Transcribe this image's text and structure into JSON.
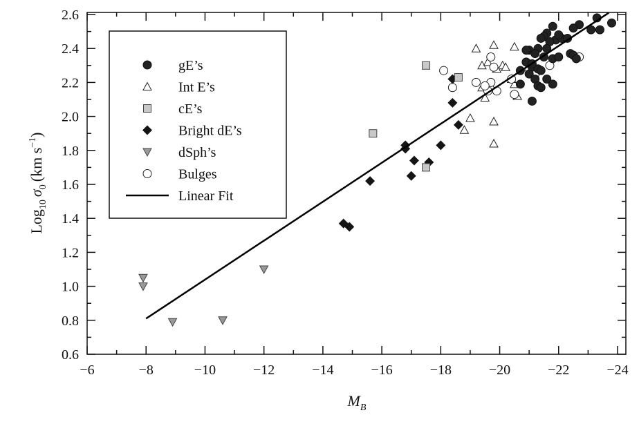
{
  "chart_data": {
    "type": "scatter",
    "title": "",
    "xlabel": "M",
    "xlabel_sub": "B",
    "ylabel_pre": "Log",
    "ylabel_sub10": "10",
    "ylabel_sigma": "σ",
    "ylabel_sub0": "0",
    "ylabel_units": "(km s",
    "ylabel_exp": "−1",
    "ylabel_close": ")",
    "xlim": [
      -6,
      -24
    ],
    "ylim": [
      0.6,
      2.6
    ],
    "xticks": [
      -6,
      -8,
      -10,
      -12,
      -14,
      -16,
      -18,
      -20,
      -22,
      -24
    ],
    "xtick_labels": [
      "−6",
      "−8",
      "−10",
      "−12",
      "−14",
      "−16",
      "−18",
      "−20",
      "−22",
      "−24"
    ],
    "yticks": [
      0.6,
      0.8,
      1.0,
      1.2,
      1.4,
      1.6,
      1.8,
      2.0,
      2.2,
      2.4,
      2.6
    ],
    "ytick_labels": [
      "0.6",
      "0.8",
      "1.0",
      "1.2",
      "1.4",
      "1.6",
      "1.8",
      "2.0",
      "2.2",
      "2.4",
      "2.6"
    ],
    "grid": false,
    "legend_position": "top-left",
    "series": [
      {
        "name": "gE’s",
        "marker": "circle-filled",
        "points": [
          [
            -23.3,
            2.58
          ],
          [
            -23.8,
            2.55
          ],
          [
            -22.7,
            2.54
          ],
          [
            -22.5,
            2.52
          ],
          [
            -23.1,
            2.51
          ],
          [
            -23.4,
            2.51
          ],
          [
            -21.8,
            2.53
          ],
          [
            -21.6,
            2.49
          ],
          [
            -21.5,
            2.47
          ],
          [
            -21.9,
            2.45
          ],
          [
            -22.1,
            2.46
          ],
          [
            -22.3,
            2.46
          ],
          [
            -22.0,
            2.48
          ],
          [
            -21.7,
            2.44
          ],
          [
            -21.6,
            2.4
          ],
          [
            -21.4,
            2.46
          ],
          [
            -21.3,
            2.4
          ],
          [
            -21.0,
            2.39
          ],
          [
            -20.9,
            2.39
          ],
          [
            -21.2,
            2.37
          ],
          [
            -21.5,
            2.35
          ],
          [
            -22.4,
            2.37
          ],
          [
            -22.5,
            2.36
          ],
          [
            -22.6,
            2.34
          ],
          [
            -21.8,
            2.34
          ],
          [
            -20.9,
            2.32
          ],
          [
            -21.1,
            2.29
          ],
          [
            -21.3,
            2.28
          ],
          [
            -21.4,
            2.27
          ],
          [
            -20.7,
            2.27
          ],
          [
            -21.0,
            2.25
          ],
          [
            -21.2,
            2.22
          ],
          [
            -21.6,
            2.22
          ],
          [
            -21.3,
            2.18
          ],
          [
            -21.4,
            2.17
          ],
          [
            -21.8,
            2.19
          ],
          [
            -20.7,
            2.19
          ],
          [
            -21.1,
            2.09
          ],
          [
            -22.0,
            2.35
          ],
          [
            -21.1,
            2.31
          ]
        ]
      },
      {
        "name": "Int E’s",
        "marker": "triangle-open",
        "points": [
          [
            -19.2,
            2.4
          ],
          [
            -19.8,
            2.42
          ],
          [
            -20.5,
            2.41
          ],
          [
            -19.4,
            2.3
          ],
          [
            -19.6,
            2.32
          ],
          [
            -20.1,
            2.3
          ],
          [
            -20.2,
            2.29
          ],
          [
            -19.5,
            2.11
          ],
          [
            -19.7,
            2.18
          ],
          [
            -20.5,
            2.19
          ],
          [
            -20.6,
            2.12
          ],
          [
            -19.0,
            1.99
          ],
          [
            -18.8,
            1.92
          ],
          [
            -19.8,
            1.97
          ],
          [
            -19.8,
            1.84
          ],
          [
            -19.4,
            2.17
          ],
          [
            -20.4,
            2.22
          ],
          [
            -19.9,
            2.28
          ]
        ]
      },
      {
        "name": "cE’s",
        "marker": "square-gray",
        "points": [
          [
            -15.7,
            1.9
          ],
          [
            -17.5,
            2.3
          ],
          [
            -18.6,
            2.23
          ],
          [
            -17.5,
            1.7
          ]
        ]
      },
      {
        "name": "Bright dE’s",
        "marker": "diamond-filled",
        "points": [
          [
            -18.4,
            2.22
          ],
          [
            -18.4,
            2.08
          ],
          [
            -18.6,
            1.95
          ],
          [
            -18.0,
            1.83
          ],
          [
            -16.8,
            1.83
          ],
          [
            -16.8,
            1.81
          ],
          [
            -17.1,
            1.74
          ],
          [
            -17.6,
            1.73
          ],
          [
            -17.0,
            1.65
          ],
          [
            -15.6,
            1.62
          ],
          [
            -14.7,
            1.37
          ],
          [
            -14.9,
            1.35
          ]
        ]
      },
      {
        "name": "dSph’s",
        "marker": "triangle-down-gray",
        "points": [
          [
            -7.9,
            1.05
          ],
          [
            -7.9,
            1.0
          ],
          [
            -8.9,
            0.79
          ],
          [
            -10.6,
            0.8
          ],
          [
            -12.0,
            1.1
          ]
        ]
      },
      {
        "name": "Bulges",
        "marker": "circle-open",
        "points": [
          [
            -18.1,
            2.27
          ],
          [
            -18.4,
            2.17
          ],
          [
            -19.2,
            2.2
          ],
          [
            -19.7,
            2.35
          ],
          [
            -19.8,
            2.29
          ],
          [
            -19.7,
            2.2
          ],
          [
            -19.6,
            2.15
          ],
          [
            -19.9,
            2.15
          ],
          [
            -20.4,
            2.22
          ],
          [
            -20.5,
            2.13
          ],
          [
            -21.0,
            2.28
          ],
          [
            -21.2,
            2.25
          ],
          [
            -21.7,
            2.3
          ],
          [
            -22.7,
            2.35
          ],
          [
            -19.5,
            2.18
          ]
        ]
      }
    ],
    "fit": {
      "name": "Linear Fit",
      "x": [
        -8,
        -23.7
      ],
      "y": [
        0.81,
        2.61
      ]
    }
  }
}
